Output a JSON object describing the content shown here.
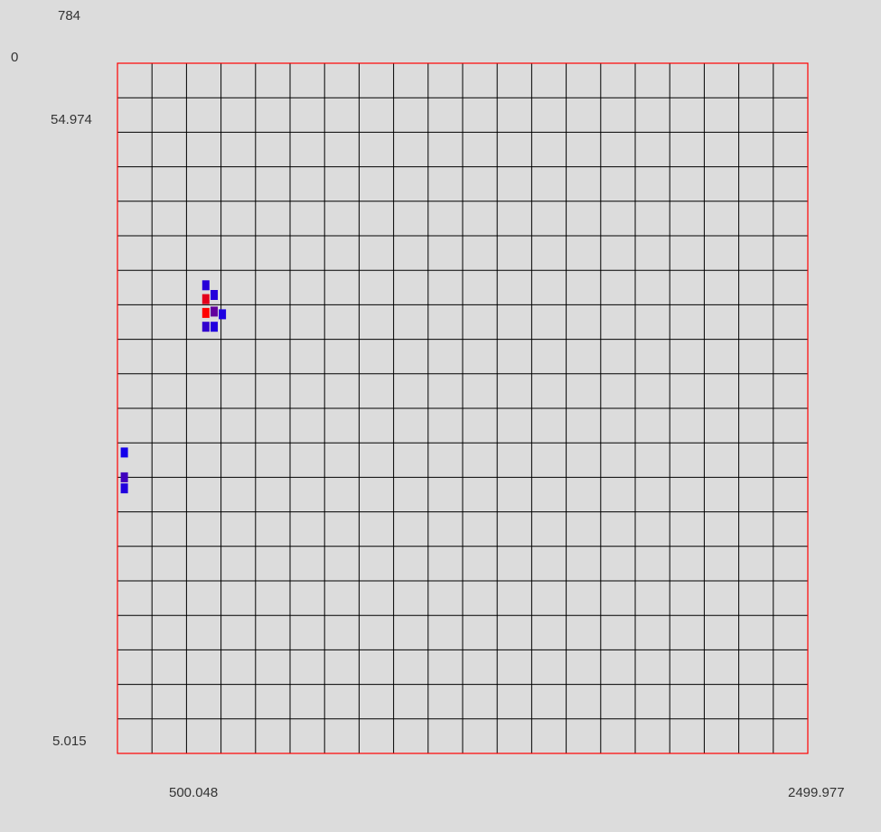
{
  "labels": {
    "top_value": "784",
    "origin_value": "0",
    "y_top_tick": "54.974",
    "y_bottom_tick": "5.015",
    "x_mid_tick": "500.048",
    "x_max_tick": "2499.977"
  },
  "chart_data": {
    "type": "heatmap",
    "grid": true,
    "grid_rows": 20,
    "grid_cols": 20,
    "x_range": [
      0,
      2499.977
    ],
    "y_range": [
      5.015,
      54.974
    ],
    "color_max_value": 784,
    "color_min_value": 0,
    "colors": {
      "grid": "#000000",
      "border": "#ff0000",
      "low": "#0000ff",
      "high": "#ff0000",
      "background": "#dcdcdc"
    },
    "cells": [
      {
        "x": 320,
        "y": 38.9,
        "value": 120
      },
      {
        "x": 320,
        "y": 37.9,
        "value": 700
      },
      {
        "x": 320,
        "y": 36.9,
        "value": 784
      },
      {
        "x": 320,
        "y": 35.9,
        "value": 150
      },
      {
        "x": 350,
        "y": 38.2,
        "value": 110
      },
      {
        "x": 350,
        "y": 37.0,
        "value": 300
      },
      {
        "x": 350,
        "y": 35.9,
        "value": 100
      },
      {
        "x": 380,
        "y": 36.8,
        "value": 90
      },
      {
        "x": 25,
        "y": 26.8,
        "value": 60
      },
      {
        "x": 25,
        "y": 25.0,
        "value": 200
      },
      {
        "x": 25,
        "y": 24.2,
        "value": 100
      }
    ]
  }
}
